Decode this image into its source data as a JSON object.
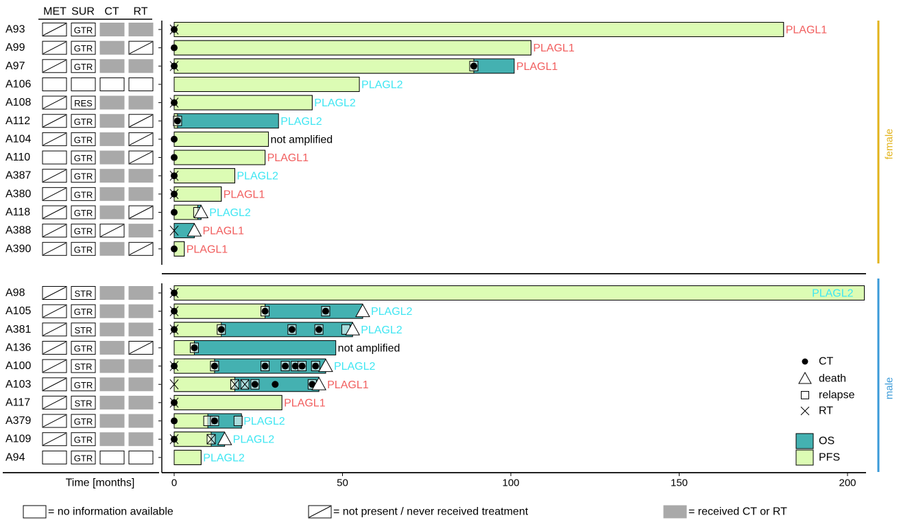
{
  "chart_data": {
    "type": "swimmer",
    "xlabel": "Time [months]",
    "xlim": [
      0,
      207
    ],
    "xticks": [
      0,
      50,
      100,
      150,
      200
    ],
    "columns": [
      "MET",
      "SUR",
      "CT",
      "RT"
    ],
    "colors": {
      "os": "#44b1b1",
      "pfs": "#dcfcb4",
      "plagl1": "#f15e5e",
      "plagl2": "#3fe6f2",
      "not_amplified": "#000000",
      "female": "#e2b31b",
      "male": "#3a9ad8",
      "received": "#a9a9a9"
    },
    "groups": [
      {
        "label": "female",
        "patients": [
          {
            "id": "A93",
            "met": "not present",
            "sur": "GTR",
            "ct": "received",
            "rt": "received",
            "pfs": 181,
            "os": 181,
            "label": "PLAGL1",
            "events": [
              {
                "t": 0,
                "type": "CT"
              },
              {
                "t": 0,
                "type": "RT"
              }
            ]
          },
          {
            "id": "A99",
            "met": "not present",
            "sur": "GTR",
            "ct": "received",
            "rt": "not present",
            "pfs": 106,
            "os": 106,
            "label": "PLAGL1",
            "events": [
              {
                "t": 0,
                "type": "CT"
              }
            ]
          },
          {
            "id": "A97",
            "met": "not present",
            "sur": "GTR",
            "ct": "received",
            "rt": "received",
            "pfs": 89,
            "os": 101,
            "label": "PLAGL1",
            "events": [
              {
                "t": 0,
                "type": "CT"
              },
              {
                "t": 0,
                "type": "RT"
              },
              {
                "t": 89,
                "type": "relapse"
              },
              {
                "t": 89,
                "type": "CT"
              }
            ]
          },
          {
            "id": "A106",
            "met": "no information",
            "sur": "no information",
            "ct": "no information",
            "rt": "no information",
            "pfs": 55,
            "os": 55,
            "label": "PLAGL2",
            "events": []
          },
          {
            "id": "A108",
            "met": "not present",
            "sur": "RES",
            "ct": "received",
            "rt": "received",
            "pfs": 41,
            "os": 41,
            "label": "PLAGL2",
            "events": [
              {
                "t": 0,
                "type": "CT"
              },
              {
                "t": 0,
                "type": "RT"
              }
            ]
          },
          {
            "id": "A112",
            "met": "not present",
            "sur": "GTR",
            "ct": "received",
            "rt": "not present",
            "pfs": 1,
            "os": 31,
            "label": "PLAGL2",
            "events": [
              {
                "t": 1,
                "type": "relapse"
              },
              {
                "t": 1,
                "type": "CT"
              }
            ]
          },
          {
            "id": "A104",
            "met": "not present",
            "sur": "GTR",
            "ct": "received",
            "rt": "not present",
            "pfs": 28,
            "os": 28,
            "label": "not amplified",
            "events": [
              {
                "t": 0,
                "type": "CT"
              }
            ]
          },
          {
            "id": "A110",
            "met": "no information",
            "sur": "GTR",
            "ct": "received",
            "rt": "not present",
            "pfs": 27,
            "os": 27,
            "label": "PLAGL1",
            "events": [
              {
                "t": 0,
                "type": "CT"
              }
            ]
          },
          {
            "id": "A387",
            "met": "not present",
            "sur": "GTR",
            "ct": "received",
            "rt": "received",
            "pfs": 18,
            "os": 18,
            "label": "PLAGL2",
            "events": [
              {
                "t": 0,
                "type": "CT"
              },
              {
                "t": 0,
                "type": "RT"
              }
            ]
          },
          {
            "id": "A380",
            "met": "not present",
            "sur": "GTR",
            "ct": "received",
            "rt": "received",
            "pfs": 14,
            "os": 14,
            "label": "PLAGL1",
            "events": [
              {
                "t": 0,
                "type": "CT"
              },
              {
                "t": 0,
                "type": "RT"
              }
            ]
          },
          {
            "id": "A118",
            "met": "not present",
            "sur": "GTR",
            "ct": "received",
            "rt": "not present",
            "pfs": 7,
            "os": 8,
            "label": "PLAGL2",
            "events": [
              {
                "t": 0,
                "type": "CT"
              },
              {
                "t": 7,
                "type": "relapse"
              },
              {
                "t": 8,
                "type": "death"
              }
            ]
          },
          {
            "id": "A388",
            "met": "not present",
            "sur": "GTR",
            "ct": "not present",
            "rt": "received",
            "pfs": 0,
            "os": 6,
            "label": "PLAGL1",
            "events": [
              {
                "t": 0,
                "type": "RT"
              },
              {
                "t": 6,
                "type": "death"
              }
            ]
          },
          {
            "id": "A390",
            "met": "not present",
            "sur": "GTR",
            "ct": "received",
            "rt": "not present",
            "pfs": 3,
            "os": 3,
            "label": "PLAGL1",
            "events": [
              {
                "t": 0,
                "type": "CT"
              }
            ]
          }
        ]
      },
      {
        "label": "male",
        "patients": [
          {
            "id": "A98",
            "met": "not present",
            "sur": "STR",
            "ct": "received",
            "rt": "received",
            "pfs": 205,
            "os": 205,
            "label": "PLAGL2",
            "events": [
              {
                "t": 0,
                "type": "CT"
              },
              {
                "t": 0,
                "type": "RT"
              }
            ]
          },
          {
            "id": "A105",
            "met": "not present",
            "sur": "GTR",
            "ct": "received",
            "rt": "received",
            "pfs": 27,
            "os": 56,
            "label": "PLAGL2",
            "events": [
              {
                "t": 0,
                "type": "CT"
              },
              {
                "t": 0,
                "type": "RT"
              },
              {
                "t": 27,
                "type": "relapse"
              },
              {
                "t": 27,
                "type": "CT"
              },
              {
                "t": 45,
                "type": "relapse"
              },
              {
                "t": 45,
                "type": "CT"
              },
              {
                "t": 56,
                "type": "death"
              }
            ]
          },
          {
            "id": "A381",
            "met": "not present",
            "sur": "STR",
            "ct": "received",
            "rt": "received",
            "pfs": 14,
            "os": 53,
            "label": "PLAGL2",
            "events": [
              {
                "t": 0,
                "type": "CT"
              },
              {
                "t": 0,
                "type": "RT"
              },
              {
                "t": 14,
                "type": "relapse"
              },
              {
                "t": 14,
                "type": "CT"
              },
              {
                "t": 35,
                "type": "relapse"
              },
              {
                "t": 35,
                "type": "CT"
              },
              {
                "t": 43,
                "type": "relapse"
              },
              {
                "t": 43,
                "type": "CT"
              },
              {
                "t": 51,
                "type": "relapse"
              },
              {
                "t": 53,
                "type": "death"
              }
            ]
          },
          {
            "id": "A136",
            "met": "not present",
            "sur": "GTR",
            "ct": "received",
            "rt": "not present",
            "pfs": 6,
            "os": 48,
            "label": "not amplified",
            "events": [
              {
                "t": 6,
                "type": "relapse"
              },
              {
                "t": 6,
                "type": "CT"
              }
            ]
          },
          {
            "id": "A100",
            "met": "not present",
            "sur": "STR",
            "ct": "received",
            "rt": "received",
            "pfs": 12,
            "os": 45,
            "label": "PLAGL2",
            "events": [
              {
                "t": 0,
                "type": "CT"
              },
              {
                "t": 0,
                "type": "RT"
              },
              {
                "t": 12,
                "type": "relapse"
              },
              {
                "t": 12,
                "type": "CT"
              },
              {
                "t": 27,
                "type": "relapse"
              },
              {
                "t": 27,
                "type": "CT"
              },
              {
                "t": 33,
                "type": "relapse"
              },
              {
                "t": 33,
                "type": "CT"
              },
              {
                "t": 36,
                "type": "relapse"
              },
              {
                "t": 36,
                "type": "CT"
              },
              {
                "t": 38,
                "type": "relapse"
              },
              {
                "t": 38,
                "type": "CT"
              },
              {
                "t": 42,
                "type": "relapse"
              },
              {
                "t": 42,
                "type": "CT"
              },
              {
                "t": 45,
                "type": "death"
              }
            ]
          },
          {
            "id": "A103",
            "met": "not present",
            "sur": "GTR",
            "ct": "received",
            "rt": "received",
            "pfs": 18,
            "os": 43,
            "label": "PLAGL1",
            "events": [
              {
                "t": 0,
                "type": "RT"
              },
              {
                "t": 18,
                "type": "relapse"
              },
              {
                "t": 18,
                "type": "RT"
              },
              {
                "t": 21,
                "type": "relapse"
              },
              {
                "t": 21,
                "type": "RT"
              },
              {
                "t": 24,
                "type": "relapse"
              },
              {
                "t": 24,
                "type": "CT"
              },
              {
                "t": 30,
                "type": "CT"
              },
              {
                "t": 41,
                "type": "relapse"
              },
              {
                "t": 41,
                "type": "CT"
              },
              {
                "t": 43,
                "type": "death"
              }
            ]
          },
          {
            "id": "A117",
            "met": "not present",
            "sur": "STR",
            "ct": "received",
            "rt": "received",
            "pfs": 32,
            "os": 32,
            "label": "PLAGL1",
            "events": [
              {
                "t": 0,
                "type": "CT"
              },
              {
                "t": 0,
                "type": "RT"
              }
            ]
          },
          {
            "id": "A379",
            "met": "not present",
            "sur": "GTR",
            "ct": "received",
            "rt": "received",
            "pfs": 10,
            "os": 20,
            "label": "PLAGL2",
            "events": [
              {
                "t": 0,
                "type": "CT"
              },
              {
                "t": 10,
                "type": "relapse"
              },
              {
                "t": 12,
                "type": "relapse"
              },
              {
                "t": 12,
                "type": "CT"
              },
              {
                "t": 19,
                "type": "relapse"
              }
            ]
          },
          {
            "id": "A109",
            "met": "not present",
            "sur": "GTR",
            "ct": "received",
            "rt": "received",
            "pfs": 11,
            "os": 15,
            "label": "PLAGL2",
            "events": [
              {
                "t": 0,
                "type": "CT"
              },
              {
                "t": 0,
                "type": "RT"
              },
              {
                "t": 11,
                "type": "relapse"
              },
              {
                "t": 11,
                "type": "RT"
              },
              {
                "t": 15,
                "type": "death"
              }
            ]
          },
          {
            "id": "A94",
            "met": "no information",
            "sur": "GTR",
            "ct": "no information",
            "rt": "no information",
            "pfs": 8,
            "os": 8,
            "label": "PLAGL2",
            "events": []
          }
        ]
      }
    ],
    "legend_events": [
      {
        "type": "CT",
        "label": "CT"
      },
      {
        "type": "death",
        "label": "death"
      },
      {
        "type": "relapse",
        "label": "relapse"
      },
      {
        "type": "RT",
        "label": "RT"
      }
    ],
    "legend_bars": [
      {
        "key": "os",
        "label": "OS"
      },
      {
        "key": "pfs",
        "label": "PFS"
      }
    ],
    "key": [
      {
        "kind": "no information",
        "label": "= no information available"
      },
      {
        "kind": "not present",
        "label": "= not present / never received treatment"
      },
      {
        "kind": "received",
        "label": "= received CT or RT"
      }
    ]
  }
}
